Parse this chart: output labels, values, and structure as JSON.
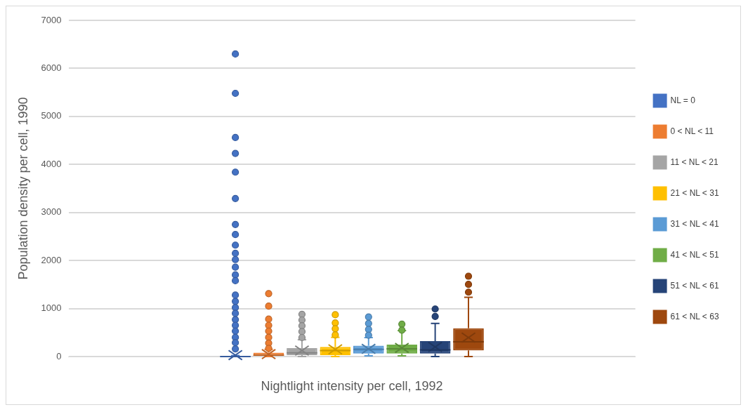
{
  "chart_data": {
    "type": "box",
    "categories": [
      null
    ],
    "xlabel": "Nightlight intensity per cell, 1992",
    "ylabel": "Population density per cell, 1990",
    "ylim": [
      0,
      7000
    ],
    "yticks": [
      0,
      1000,
      2000,
      3000,
      4000,
      5000,
      6000,
      7000
    ],
    "grid": "y",
    "legend": "right",
    "marker": "circle",
    "series": [
      {
        "name": "NL = 0",
        "color": "#4472c4",
        "boxes": [
          {
            "low": 0,
            "q1": 0,
            "median": 0,
            "q3": 10,
            "high": 20,
            "mean": 30,
            "outliers": [
              6300,
              5480,
              4560,
              4230,
              3840,
              3290,
              2750,
              2540,
              2320,
              2150,
              2020,
              1860,
              1700,
              1580,
              1280,
              1150,
              1020,
              900,
              770,
              650,
              530,
              400,
              290,
              160
            ]
          }
        ]
      },
      {
        "name": "0 < NL < 11",
        "color": "#ed7d31",
        "boxes": [
          {
            "low": 0,
            "q1": 0,
            "median": 30,
            "q3": 80,
            "high": 150,
            "mean": 50,
            "outliers": [
              1310,
              1050,
              780,
              650,
              530,
              400,
              280,
              170
            ]
          }
        ]
      },
      {
        "name": "11 < NL < 21",
        "color": "#a5a5a5",
        "boxes": [
          {
            "low": 0,
            "q1": 30,
            "median": 78,
            "q3": 175,
            "high": 350,
            "mean": 125,
            "outliers": [
              880,
              760,
              640,
              520,
              395
            ]
          }
        ]
      },
      {
        "name": "21 < NL < 31",
        "color": "#ffc000",
        "boxes": [
          {
            "low": 0,
            "q1": 30,
            "median": 125,
            "q3": 200,
            "high": 400,
            "mean": 150,
            "outliers": [
              870,
              700,
              580,
              450
            ]
          }
        ]
      },
      {
        "name": "31 < NL < 41",
        "color": "#5b9bd5",
        "boxes": [
          {
            "low": 15,
            "q1": 63,
            "median": 150,
            "q3": 225,
            "high": 395,
            "mean": 160,
            "outliers": [
              825,
              690,
              565,
              445
            ]
          }
        ]
      },
      {
        "name": "41 < NL < 51",
        "color": "#70ad47",
        "boxes": [
          {
            "low": 15,
            "q1": 63,
            "median": 160,
            "q3": 250,
            "high": 540,
            "mean": 180,
            "outliers": [
              675,
              550
            ]
          }
        ]
      },
      {
        "name": "51 < NL < 61",
        "color": "#264478",
        "boxes": [
          {
            "low": 0,
            "q1": 63,
            "median": 140,
            "q3": 320,
            "high": 690,
            "mean": 200,
            "outliers": [
              990,
              835
            ]
          }
        ]
      },
      {
        "name": "61 < NL < 63",
        "color": "#9e480e",
        "boxes": [
          {
            "low": 0,
            "q1": 127,
            "median": 307,
            "q3": 590,
            "high": 1234,
            "mean": 395,
            "outliers": [
              1673,
              1502,
              1341
            ]
          }
        ]
      }
    ]
  }
}
